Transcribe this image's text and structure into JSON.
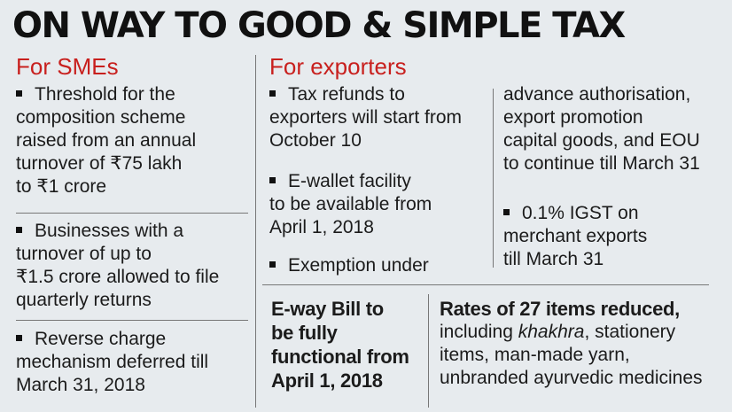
{
  "title": "ON WAY TO GOOD & SIMPLE TAX",
  "smes": {
    "heading": "For SMEs",
    "items": [
      [
        "Threshold for the",
        "composition scheme",
        "raised from an annual",
        "turnover of ₹75 lakh",
        "to ₹1 crore"
      ],
      [
        "Businesses with a",
        "turnover of up to",
        "₹1.5 crore allowed to file",
        "quarterly returns"
      ],
      [
        "Reverse charge",
        "mechanism deferred till",
        "March 31, 2018"
      ]
    ]
  },
  "exporters": {
    "heading": "For exporters",
    "left_items": [
      [
        "Tax refunds to",
        "exporters will start from",
        "October 10"
      ],
      [
        "E-wallet facility",
        "to be available from",
        "April 1, 2018"
      ],
      [
        "Exemption under"
      ]
    ],
    "right_continuation": [
      "advance authorisation,",
      "export promotion",
      "capital goods, and EOU",
      "to continue till March 31"
    ],
    "right_items": [
      [
        "0.1% IGST on",
        "merchant exports",
        "till March 31"
      ]
    ]
  },
  "eway": {
    "lines": [
      "E-way Bill to",
      "be fully",
      "functional from",
      "April 1, 2018"
    ]
  },
  "rates": {
    "heading": "Rates of 27 items reduced,",
    "line1_prefix": "including ",
    "line1_italic": "khakhra",
    "line1_suffix": ", stationery",
    "lines": [
      "items, man-made yarn,",
      "unbranded ayurvedic medicines"
    ]
  }
}
